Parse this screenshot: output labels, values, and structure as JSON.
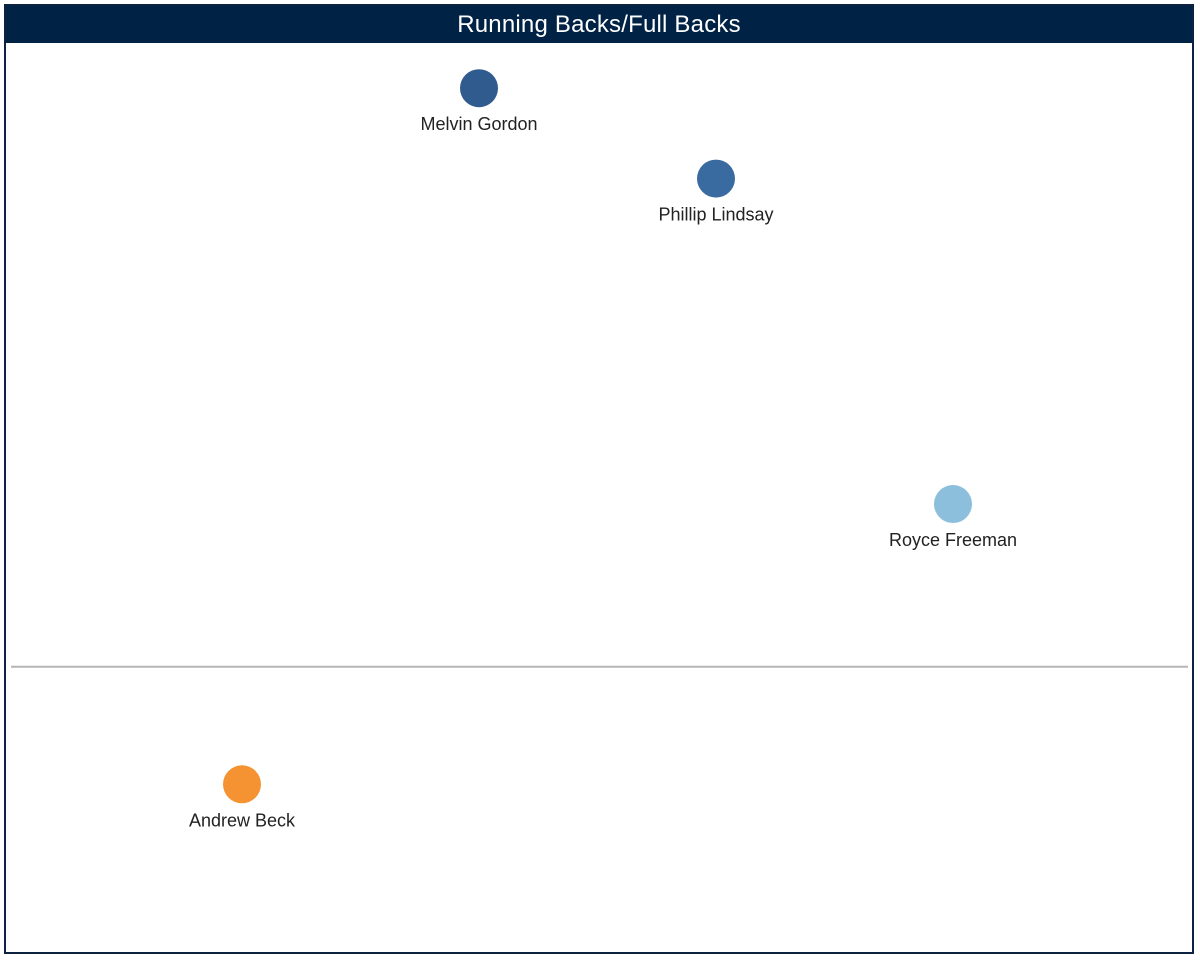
{
  "chart_data": {
    "type": "scatter",
    "title": "Running Backs/Full Backs",
    "xlabel": "",
    "ylabel": "",
    "grid": false,
    "xlim": [
      0,
      100
    ],
    "ylim": [
      0,
      100
    ],
    "reference_line": {
      "axis": "y",
      "value": 31
    },
    "points": [
      {
        "label": "Melvin Gordon",
        "x": 40,
        "y": 95,
        "color": "#2f5b8f"
      },
      {
        "label": "Phillip Lindsay",
        "x": 60,
        "y": 85,
        "color": "#3a6ba0"
      },
      {
        "label": "Royce Freeman",
        "x": 80,
        "y": 49,
        "color": "#8cbfdc"
      },
      {
        "label": "Andrew Beck",
        "x": 20,
        "y": 18,
        "color": "#f59332"
      }
    ]
  },
  "colors": {
    "header_bg": "#002244",
    "header_text": "#ffffff",
    "border": "#0d2240",
    "reference_line": "#b5b5b5"
  }
}
